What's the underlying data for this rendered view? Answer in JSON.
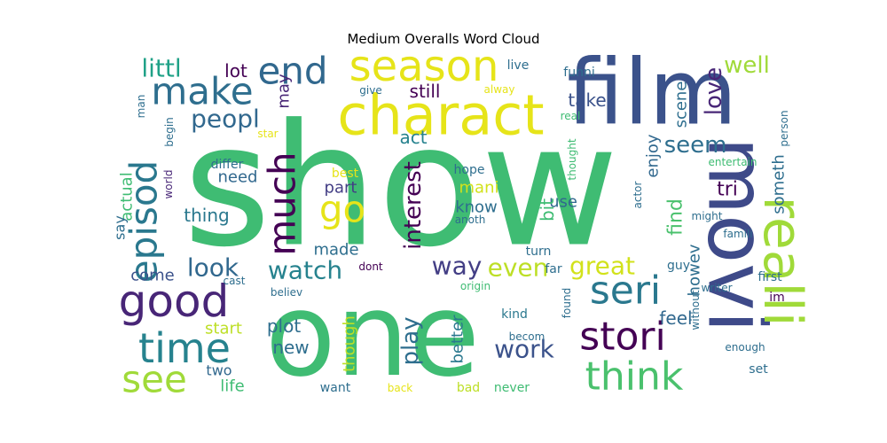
{
  "chart_data": {
    "type": "wordcloud",
    "title": "Medium Overalls Word Cloud",
    "words": [
      {
        "text": "show",
        "color": "#3fbc73",
        "rotate": 0
      },
      {
        "text": "one",
        "color": "#3fbc73",
        "rotate": 0
      },
      {
        "text": "film",
        "color": "#3b528b",
        "rotate": 0
      },
      {
        "text": "movi",
        "color": "#3e4a89",
        "rotate": 90
      },
      {
        "text": "charact",
        "color": "#e6e419",
        "rotate": 0
      },
      {
        "text": "season",
        "color": "#e6e419",
        "rotate": 0
      },
      {
        "text": "realli",
        "color": "#a0da39",
        "rotate": 90
      },
      {
        "text": "make",
        "color": "#2e6e8e",
        "rotate": 0
      },
      {
        "text": "end",
        "color": "#31688e",
        "rotate": 0
      },
      {
        "text": "episod",
        "color": "#2a788e",
        "rotate": 270
      },
      {
        "text": "much",
        "color": "#440154",
        "rotate": 270
      },
      {
        "text": "good",
        "color": "#482677",
        "rotate": 0
      },
      {
        "text": "time",
        "color": "#26828e",
        "rotate": 0
      },
      {
        "text": "see",
        "color": "#a0da39",
        "rotate": 0
      },
      {
        "text": "seri",
        "color": "#2a788e",
        "rotate": 0
      },
      {
        "text": "stori",
        "color": "#440154",
        "rotate": 0
      },
      {
        "text": "think",
        "color": "#4ac16d",
        "rotate": 0
      },
      {
        "text": "go",
        "color": "#e6e419",
        "rotate": 0
      },
      {
        "text": "littl",
        "color": "#1fa187",
        "rotate": 0
      },
      {
        "text": "peopl",
        "color": "#31688e",
        "rotate": 0
      },
      {
        "text": "watch",
        "color": "#26828e",
        "rotate": 0
      },
      {
        "text": "look",
        "color": "#31688e",
        "rotate": 0
      },
      {
        "text": "way",
        "color": "#433e85",
        "rotate": 0
      },
      {
        "text": "even",
        "color": "#bddf26",
        "rotate": 0
      },
      {
        "text": "great",
        "color": "#d2e21b",
        "rotate": 0
      },
      {
        "text": "interest",
        "color": "#440154",
        "rotate": 270
      },
      {
        "text": "play",
        "color": "#2e6e8e",
        "rotate": 270
      },
      {
        "text": "work",
        "color": "#3b528b",
        "rotate": 0
      },
      {
        "text": "seem",
        "color": "#2e6e8e",
        "rotate": 0
      },
      {
        "text": "love",
        "color": "#482677",
        "rotate": 270
      },
      {
        "text": "well",
        "color": "#a0da39",
        "rotate": 0
      },
      {
        "text": "take",
        "color": "#3b528b",
        "rotate": 0
      },
      {
        "text": "still",
        "color": "#440154",
        "rotate": 0
      },
      {
        "text": "lot",
        "color": "#440154",
        "rotate": 0
      },
      {
        "text": "act",
        "color": "#26828e",
        "rotate": 0
      },
      {
        "text": "need",
        "color": "#31688e",
        "rotate": 0
      },
      {
        "text": "thing",
        "color": "#2a788e",
        "rotate": 0
      },
      {
        "text": "come",
        "color": "#3b528b",
        "rotate": 0
      },
      {
        "text": "made",
        "color": "#2e6e8e",
        "rotate": 0
      },
      {
        "text": "part",
        "color": "#433e85",
        "rotate": 0
      },
      {
        "text": "mani",
        "color": "#d2e21b",
        "rotate": 0
      },
      {
        "text": "know",
        "color": "#2e6e8e",
        "rotate": 0
      },
      {
        "text": "plot",
        "color": "#2e6e8e",
        "rotate": 0
      },
      {
        "text": "new",
        "color": "#2e6e8e",
        "rotate": 0
      },
      {
        "text": "start",
        "color": "#bddf26",
        "rotate": 0
      },
      {
        "text": "feel",
        "color": "#31688e",
        "rotate": 0
      },
      {
        "text": "find",
        "color": "#4ac16d",
        "rotate": 270
      },
      {
        "text": "enjoy",
        "color": "#31688e",
        "rotate": 270
      },
      {
        "text": "scene",
        "color": "#2e6e8e",
        "rotate": 270
      },
      {
        "text": "tri",
        "color": "#440154",
        "rotate": 0
      },
      {
        "text": "someth",
        "color": "#2e6e8e",
        "rotate": 270
      },
      {
        "text": "use",
        "color": "#31688e",
        "rotate": 0
      },
      {
        "text": "bit",
        "color": "#3fbc73",
        "rotate": 270
      },
      {
        "text": "howev",
        "color": "#2e6e8e",
        "rotate": 270
      },
      {
        "text": "though",
        "color": "#bddf26",
        "rotate": 270
      },
      {
        "text": "better",
        "color": "#2a788e",
        "rotate": 270
      },
      {
        "text": "actual",
        "color": "#3fbc73",
        "rotate": 270
      },
      {
        "text": "say",
        "color": "#2e6e8e",
        "rotate": 270
      },
      {
        "text": "may",
        "color": "#482677",
        "rotate": 270
      },
      {
        "text": "life",
        "color": "#3fbc73",
        "rotate": 0
      },
      {
        "text": "two",
        "color": "#31688e",
        "rotate": 0
      },
      {
        "text": "want",
        "color": "#2e6e8e",
        "rotate": 0
      },
      {
        "text": "kind",
        "color": "#2a788e",
        "rotate": 0
      },
      {
        "text": "becom",
        "color": "#2e6e8e",
        "rotate": 0
      },
      {
        "text": "hope",
        "color": "#2e6e8e",
        "rotate": 0
      },
      {
        "text": "anoth",
        "color": "#2e6e8e",
        "rotate": 0
      },
      {
        "text": "best",
        "color": "#e6e419",
        "rotate": 0
      },
      {
        "text": "differ",
        "color": "#2e6e8e",
        "rotate": 0
      },
      {
        "text": "believ",
        "color": "#2e6e8e",
        "rotate": 0
      },
      {
        "text": "dont",
        "color": "#440154",
        "rotate": 0
      },
      {
        "text": "origin",
        "color": "#3fbc73",
        "rotate": 0
      },
      {
        "text": "turn",
        "color": "#2e6e8e",
        "rotate": 0
      },
      {
        "text": "far",
        "color": "#2e6e8e",
        "rotate": 0
      },
      {
        "text": "guy",
        "color": "#2e6e8e",
        "rotate": 0
      },
      {
        "text": "writer",
        "color": "#2e6e8e",
        "rotate": 0
      },
      {
        "text": "first",
        "color": "#2e6e8e",
        "rotate": 0
      },
      {
        "text": "im",
        "color": "#440154",
        "rotate": 0
      },
      {
        "text": "enough",
        "color": "#2e6e8e",
        "rotate": 0
      },
      {
        "text": "set",
        "color": "#2e6e8e",
        "rotate": 0
      },
      {
        "text": "bad",
        "color": "#bddf26",
        "rotate": 0
      },
      {
        "text": "never",
        "color": "#3fbc73",
        "rotate": 0
      },
      {
        "text": "back",
        "color": "#e6e419",
        "rotate": 0
      },
      {
        "text": "live",
        "color": "#2e6e8e",
        "rotate": 0
      },
      {
        "text": "funni",
        "color": "#2e6e8e",
        "rotate": 0
      },
      {
        "text": "real",
        "color": "#3fbc73",
        "rotate": 0
      },
      {
        "text": "give",
        "color": "#2e6e8e",
        "rotate": 0
      },
      {
        "text": "alway",
        "color": "#e6e419",
        "rotate": 0
      },
      {
        "text": "entertain",
        "color": "#3fbc73",
        "rotate": 0
      },
      {
        "text": "might",
        "color": "#2e6e8e",
        "rotate": 0
      },
      {
        "text": "famili",
        "color": "#2e6e8e",
        "rotate": 0
      },
      {
        "text": "thought",
        "color": "#3fbc73",
        "rotate": 270
      },
      {
        "text": "actor",
        "color": "#2e6e8e",
        "rotate": 270
      },
      {
        "text": "person",
        "color": "#2e6e8e",
        "rotate": 270
      },
      {
        "text": "man",
        "color": "#2e6e8e",
        "rotate": 270
      },
      {
        "text": "begin",
        "color": "#2e6e8e",
        "rotate": 270
      },
      {
        "text": "world",
        "color": "#482677",
        "rotate": 270
      },
      {
        "text": "star",
        "color": "#e6e419",
        "rotate": 0
      },
      {
        "text": "cast",
        "color": "#2e6e8e",
        "rotate": 0
      },
      {
        "text": "found",
        "color": "#2e6e8e",
        "rotate": 270
      },
      {
        "text": "without",
        "color": "#2e6e8e",
        "rotate": 270
      }
    ]
  }
}
